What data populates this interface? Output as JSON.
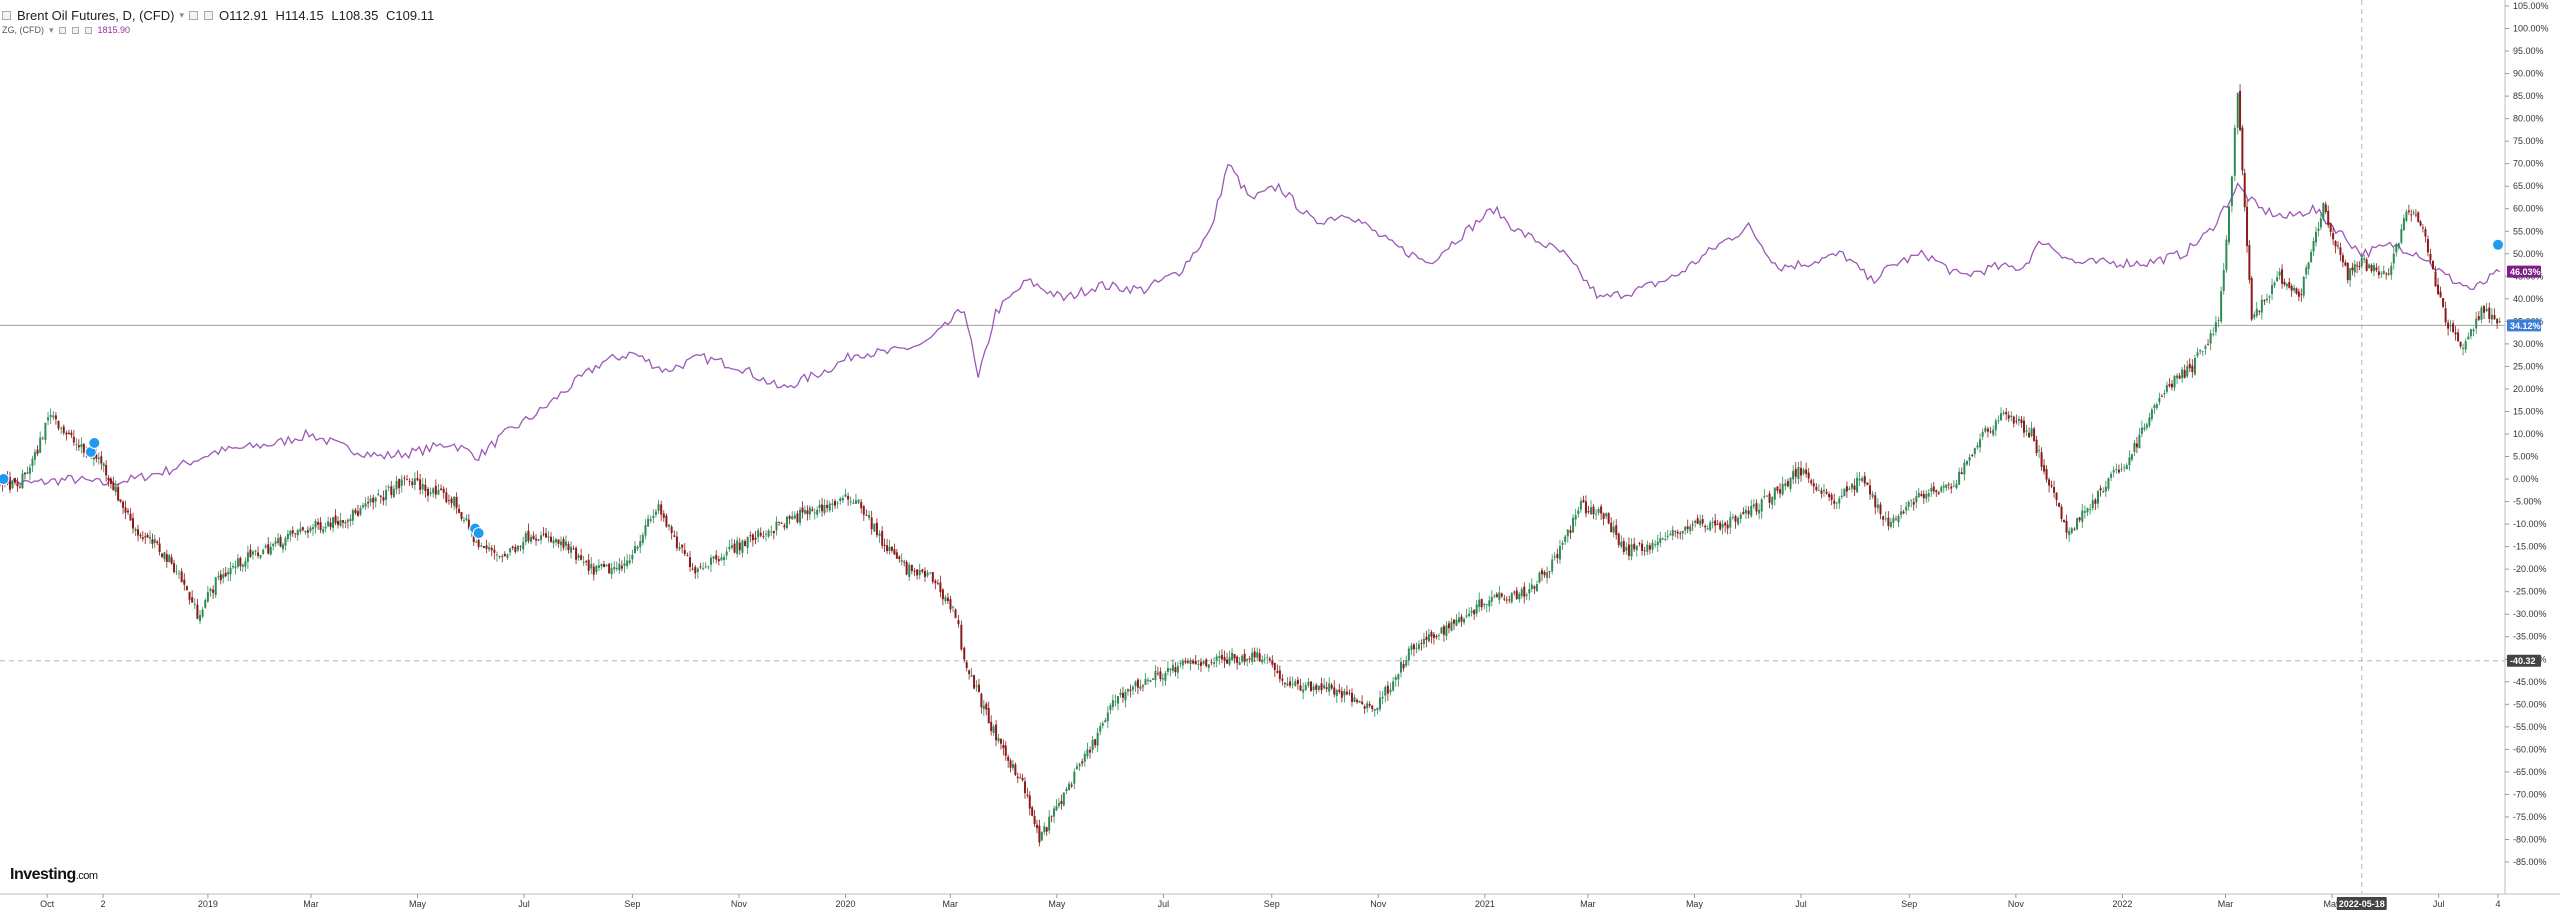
{
  "header": {
    "main_symbol": "Brent Oil Futures, D, (CFD)",
    "ohlc": {
      "open": "O112.91",
      "high": "H114.15",
      "low": "L108.35",
      "close": "C109.11"
    },
    "compare_symbol": "ZG, (CFD)",
    "compare_value": "1815.90"
  },
  "logo": {
    "brand": "Investing",
    "suffix": ".com"
  },
  "colors": {
    "up": "#2e8b57",
    "down": "#8b1a1a",
    "compare_line": "#9b59b6",
    "compare_tag": "#7e1f86",
    "main_tag": "#3b7dd8",
    "cursor_tag": "#444444",
    "grid_line": "#cccccc",
    "axis": "#333333",
    "event_marker": "#1e9bf0"
  },
  "price_tags": {
    "compare": "46.03%",
    "main": "34.12%",
    "cursor_y": "-40.32",
    "cursor_x": "2022-05-18"
  },
  "chart_data": {
    "type": "line",
    "title": "Brent Oil Futures, D, (CFD)",
    "y_unit": "%",
    "ylim": [
      -85,
      105
    ],
    "y_ticks": [
      105,
      100,
      95,
      90,
      85,
      80,
      75,
      70,
      65,
      60,
      55,
      50,
      45,
      40,
      35,
      30,
      25,
      20,
      15,
      10,
      5,
      0,
      -5,
      -10,
      -15,
      -20,
      -25,
      -30,
      -35,
      -40,
      -45,
      -50,
      -55,
      -60,
      -65,
      -70,
      -75,
      -80,
      -85
    ],
    "y_tick_labels": [
      "105.00%",
      "100.00%",
      "95.00%",
      "90.00%",
      "85.00%",
      "80.00%",
      "75.00%",
      "70.00%",
      "65.00%",
      "60.00%",
      "55.00%",
      "50.00%",
      "45.00%",
      "40.00%",
      "35.00%",
      "30.00%",
      "25.00%",
      "20.00%",
      "15.00%",
      "10.00%",
      "5.00%",
      "0.00%",
      "-5.00%",
      "-10.00%",
      "-15.00%",
      "-20.00%",
      "-25.00%",
      "-30.00%",
      "-35.00%",
      "-40.00%",
      "-45.00%",
      "-50.00%",
      "-55.00%",
      "-60.00%",
      "-65.00%",
      "-70.00%",
      "-75.00%",
      "-80.00%",
      "-85.00%"
    ],
    "x_range": [
      "2018-09-04",
      "2022-08-08"
    ],
    "x_ticks": [
      {
        "label": "Oct",
        "date": "2018-10-01"
      },
      {
        "label": "2",
        "date": "2018-11-02"
      },
      {
        "label": "2019",
        "date": "2019-01-01"
      },
      {
        "label": "Mar",
        "date": "2019-03-01"
      },
      {
        "label": "May",
        "date": "2019-05-01"
      },
      {
        "label": "Jul",
        "date": "2019-07-01"
      },
      {
        "label": "Sep",
        "date": "2019-09-01"
      },
      {
        "label": "Nov",
        "date": "2019-11-01"
      },
      {
        "label": "2020",
        "date": "2020-01-01"
      },
      {
        "label": "Mar",
        "date": "2020-03-01"
      },
      {
        "label": "May",
        "date": "2020-05-01"
      },
      {
        "label": "Jul",
        "date": "2020-07-01"
      },
      {
        "label": "Sep",
        "date": "2020-09-01"
      },
      {
        "label": "Nov",
        "date": "2020-11-01"
      },
      {
        "label": "2021",
        "date": "2021-01-01"
      },
      {
        "label": "Mar",
        "date": "2021-03-01"
      },
      {
        "label": "May",
        "date": "2021-05-01"
      },
      {
        "label": "Jul",
        "date": "2021-07-01"
      },
      {
        "label": "Sep",
        "date": "2021-09-01"
      },
      {
        "label": "Nov",
        "date": "2021-11-01"
      },
      {
        "label": "2022",
        "date": "2022-01-01"
      },
      {
        "label": "Mar",
        "date": "2022-03-01"
      },
      {
        "label": "May",
        "date": "2022-05-01"
      },
      {
        "label": "Jul",
        "date": "2022-07-01"
      },
      {
        "label": "4",
        "date": "2022-08-04"
      }
    ],
    "horizontal_lines": [
      34.12,
      -40.32
    ],
    "cursor_date": "2022-05-18",
    "series": [
      {
        "name": "Brent Oil Futures, D, (CFD)",
        "style": "candlestick",
        "points": [
          [
            "2018-09-04",
            0
          ],
          [
            "2018-09-14",
            -2
          ],
          [
            "2018-09-24",
            5
          ],
          [
            "2018-10-03",
            15
          ],
          [
            "2018-10-12",
            10
          ],
          [
            "2018-10-22",
            6
          ],
          [
            "2018-11-01",
            4
          ],
          [
            "2018-11-12",
            -5
          ],
          [
            "2018-11-22",
            -12
          ],
          [
            "2018-12-03",
            -15
          ],
          [
            "2018-12-14",
            -20
          ],
          [
            "2018-12-26",
            -30
          ],
          [
            "2019-01-07",
            -22
          ],
          [
            "2019-01-21",
            -18
          ],
          [
            "2019-02-06",
            -15
          ],
          [
            "2019-02-20",
            -12
          ],
          [
            "2019-03-08",
            -10
          ],
          [
            "2019-03-25",
            -8
          ],
          [
            "2019-04-10",
            -4
          ],
          [
            "2019-04-25",
            0
          ],
          [
            "2019-05-10",
            -3
          ],
          [
            "2019-05-22",
            -5
          ],
          [
            "2019-06-05",
            -15
          ],
          [
            "2019-06-20",
            -17
          ],
          [
            "2019-07-05",
            -12
          ],
          [
            "2019-07-25",
            -15
          ],
          [
            "2019-08-07",
            -20
          ],
          [
            "2019-08-26",
            -20
          ],
          [
            "2019-09-16",
            -6
          ],
          [
            "2019-09-25",
            -14
          ],
          [
            "2019-10-07",
            -20
          ],
          [
            "2019-10-25",
            -16
          ],
          [
            "2019-11-15",
            -12
          ],
          [
            "2019-12-06",
            -8
          ],
          [
            "2019-12-20",
            -6
          ],
          [
            "2020-01-07",
            -4
          ],
          [
            "2020-01-22",
            -14
          ],
          [
            "2020-02-05",
            -20
          ],
          [
            "2020-02-20",
            -22
          ],
          [
            "2020-03-04",
            -30
          ],
          [
            "2020-03-09",
            -40
          ],
          [
            "2020-03-16",
            -47
          ],
          [
            "2020-03-30",
            -60
          ],
          [
            "2020-04-10",
            -66
          ],
          [
            "2020-04-21",
            -80
          ],
          [
            "2020-05-05",
            -70
          ],
          [
            "2020-05-20",
            -60
          ],
          [
            "2020-06-05",
            -48
          ],
          [
            "2020-06-25",
            -44
          ],
          [
            "2020-07-15",
            -41
          ],
          [
            "2020-08-05",
            -40
          ],
          [
            "2020-08-28",
            -39
          ],
          [
            "2020-09-10",
            -46
          ],
          [
            "2020-10-01",
            -46
          ],
          [
            "2020-10-30",
            -51
          ],
          [
            "2020-11-20",
            -38
          ],
          [
            "2020-12-10",
            -33
          ],
          [
            "2021-01-05",
            -26
          ],
          [
            "2021-01-25",
            -25
          ],
          [
            "2021-02-10",
            -18
          ],
          [
            "2021-02-25",
            -6
          ],
          [
            "2021-03-10",
            -8
          ],
          [
            "2021-03-23",
            -16
          ],
          [
            "2021-04-10",
            -14
          ],
          [
            "2021-04-30",
            -10
          ],
          [
            "2021-05-20",
            -10
          ],
          [
            "2021-06-10",
            -5
          ],
          [
            "2021-07-01",
            2
          ],
          [
            "2021-07-20",
            -5
          ],
          [
            "2021-08-05",
            0
          ],
          [
            "2021-08-20",
            -10
          ],
          [
            "2021-09-05",
            -4
          ],
          [
            "2021-09-25",
            -2
          ],
          [
            "2021-10-10",
            8
          ],
          [
            "2021-10-25",
            15
          ],
          [
            "2021-11-10",
            10
          ],
          [
            "2021-11-30",
            -12
          ],
          [
            "2021-12-15",
            -5
          ],
          [
            "2022-01-05",
            5
          ],
          [
            "2022-01-25",
            20
          ],
          [
            "2022-02-10",
            25
          ],
          [
            "2022-02-25",
            35
          ],
          [
            "2022-03-03",
            60
          ],
          [
            "2022-03-08",
            85
          ],
          [
            "2022-03-16",
            35
          ],
          [
            "2022-04-01",
            45
          ],
          [
            "2022-04-12",
            40
          ],
          [
            "2022-04-26",
            60
          ],
          [
            "2022-05-10",
            45
          ],
          [
            "2022-05-18",
            48
          ],
          [
            "2022-06-01",
            45
          ],
          [
            "2022-06-14",
            60
          ],
          [
            "2022-06-22",
            55
          ],
          [
            "2022-07-05",
            35
          ],
          [
            "2022-07-15",
            30
          ],
          [
            "2022-07-27",
            38
          ],
          [
            "2022-08-05",
            34
          ]
        ]
      },
      {
        "name": "ZG, (CFD)",
        "style": "line",
        "points": [
          [
            "2018-09-04",
            0
          ],
          [
            "2018-09-20",
            -1
          ],
          [
            "2018-10-15",
            0
          ],
          [
            "2018-11-02",
            -1
          ],
          [
            "2018-11-20",
            0
          ],
          [
            "2018-12-10",
            2
          ],
          [
            "2019-01-05",
            6
          ],
          [
            "2019-02-10",
            8
          ],
          [
            "2019-02-28",
            10
          ],
          [
            "2019-03-20",
            7
          ],
          [
            "2019-04-10",
            5
          ],
          [
            "2019-04-30",
            6
          ],
          [
            "2019-05-20",
            8
          ],
          [
            "2019-06-05",
            5
          ],
          [
            "2019-06-20",
            10
          ],
          [
            "2019-07-10",
            15
          ],
          [
            "2019-08-01",
            22
          ],
          [
            "2019-08-15",
            26
          ],
          [
            "2019-09-01",
            28
          ],
          [
            "2019-09-20",
            24
          ],
          [
            "2019-10-10",
            27
          ],
          [
            "2019-11-01",
            25
          ],
          [
            "2019-11-25",
            20
          ],
          [
            "2019-12-20",
            24
          ],
          [
            "2020-01-08",
            28
          ],
          [
            "2020-01-25",
            28
          ],
          [
            "2020-02-15",
            30
          ],
          [
            "2020-02-25",
            33
          ],
          [
            "2020-03-09",
            38
          ],
          [
            "2020-03-17",
            22
          ],
          [
            "2020-03-27",
            37
          ],
          [
            "2020-04-14",
            44
          ],
          [
            "2020-05-05",
            40
          ],
          [
            "2020-05-25",
            43
          ],
          [
            "2020-06-20",
            42
          ],
          [
            "2020-07-10",
            46
          ],
          [
            "2020-07-28",
            55
          ],
          [
            "2020-08-07",
            70
          ],
          [
            "2020-08-20",
            62
          ],
          [
            "2020-09-05",
            65
          ],
          [
            "2020-09-25",
            57
          ],
          [
            "2020-10-15",
            59
          ],
          [
            "2020-11-09",
            52
          ],
          [
            "2020-11-30",
            48
          ],
          [
            "2020-12-15",
            53
          ],
          [
            "2021-01-06",
            60
          ],
          [
            "2021-01-20",
            55
          ],
          [
            "2021-02-15",
            50
          ],
          [
            "2021-03-08",
            40
          ],
          [
            "2021-03-30",
            42
          ],
          [
            "2021-04-20",
            45
          ],
          [
            "2021-05-15",
            52
          ],
          [
            "2021-06-01",
            56
          ],
          [
            "2021-06-18",
            47
          ],
          [
            "2021-07-05",
            48
          ],
          [
            "2021-07-25",
            50
          ],
          [
            "2021-08-10",
            44
          ],
          [
            "2021-08-25",
            48
          ],
          [
            "2021-09-10",
            50
          ],
          [
            "2021-09-30",
            45
          ],
          [
            "2021-10-20",
            47
          ],
          [
            "2021-11-05",
            47
          ],
          [
            "2021-11-16",
            53
          ],
          [
            "2021-12-05",
            48
          ],
          [
            "2021-12-25",
            48
          ],
          [
            "2022-01-15",
            48
          ],
          [
            "2022-02-05",
            50
          ],
          [
            "2022-02-20",
            55
          ],
          [
            "2022-03-08",
            65
          ],
          [
            "2022-03-20",
            60
          ],
          [
            "2022-04-05",
            58
          ],
          [
            "2022-04-20",
            60
          ],
          [
            "2022-05-05",
            55
          ],
          [
            "2022-05-18",
            50
          ],
          [
            "2022-06-05",
            52
          ],
          [
            "2022-06-20",
            50
          ],
          [
            "2022-07-05",
            45
          ],
          [
            "2022-07-21",
            42
          ],
          [
            "2022-08-05",
            46
          ]
        ]
      }
    ],
    "event_markers": [
      [
        "2018-09-06",
        0
      ],
      [
        "2018-10-26",
        6
      ],
      [
        "2018-10-28",
        8
      ],
      [
        "2019-06-03",
        -11
      ],
      [
        "2019-06-05",
        -12
      ],
      [
        "2022-08-04",
        52
      ]
    ]
  }
}
